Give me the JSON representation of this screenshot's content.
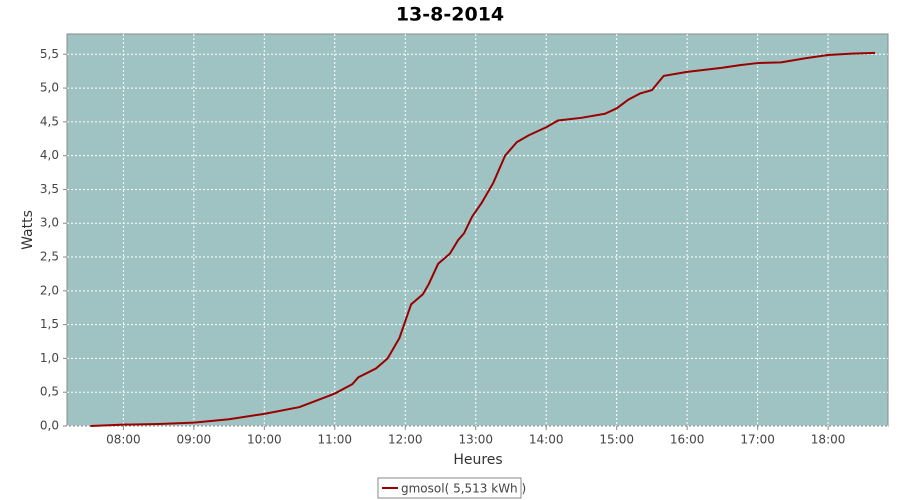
{
  "chart_data": {
    "type": "line",
    "title": "13-8-2014",
    "x_label": "Heures",
    "y_label": "Watts",
    "x": [
      "07:32",
      "08:00",
      "08:30",
      "09:00",
      "09:30",
      "10:00",
      "10:30",
      "10:45",
      "11:00",
      "11:15",
      "11:20",
      "11:35",
      "11:45",
      "11:55",
      "12:05",
      "12:15",
      "12:20",
      "12:28",
      "12:38",
      "12:45",
      "12:50",
      "12:57",
      "13:05",
      "13:15",
      "13:25",
      "13:35",
      "13:45",
      "14:00",
      "14:10",
      "14:30",
      "14:50",
      "15:00",
      "15:10",
      "15:20",
      "15:30",
      "15:40",
      "16:00",
      "16:30",
      "16:45",
      "17:00",
      "17:20",
      "17:40",
      "18:00",
      "18:20",
      "18:40"
    ],
    "series": [
      {
        "name": "gmosol( 5,513 kWh )",
        "color": "#990000",
        "values": [
          0.0,
          0.02,
          0.03,
          0.05,
          0.1,
          0.18,
          0.28,
          0.38,
          0.48,
          0.62,
          0.72,
          0.85,
          1.0,
          1.3,
          1.8,
          1.95,
          2.1,
          2.4,
          2.55,
          2.75,
          2.85,
          3.1,
          3.3,
          3.6,
          4.0,
          4.2,
          4.3,
          4.42,
          4.52,
          4.56,
          4.62,
          4.7,
          4.83,
          4.92,
          4.97,
          5.18,
          5.24,
          5.3,
          5.34,
          5.37,
          5.38,
          5.44,
          5.49,
          5.51,
          5.52
        ]
      }
    ],
    "xlim": [
      "07:12",
      "18:51"
    ],
    "xticks": [
      "08:00",
      "09:00",
      "10:00",
      "11:00",
      "12:00",
      "13:00",
      "14:00",
      "15:00",
      "16:00",
      "17:00",
      "18:00"
    ],
    "ylim": [
      0,
      5.8
    ],
    "yticks": [
      {
        "value": 0,
        "label": "0,0"
      },
      {
        "value": 0.5,
        "label": "0,5"
      },
      {
        "value": 1,
        "label": "1,0"
      },
      {
        "value": 1.5,
        "label": "1,5"
      },
      {
        "value": 2,
        "label": "2,0"
      },
      {
        "value": 2.5,
        "label": "2,5"
      },
      {
        "value": 3,
        "label": "3,0"
      },
      {
        "value": 3.5,
        "label": "3,5"
      },
      {
        "value": 4,
        "label": "4,0"
      },
      {
        "value": 4.5,
        "label": "4,5"
      },
      {
        "value": 5,
        "label": "5,0"
      },
      {
        "value": 5.5,
        "label": "5,5"
      }
    ],
    "grid": true,
    "plot_background": "#9fc3c3",
    "legend": "bottom"
  }
}
